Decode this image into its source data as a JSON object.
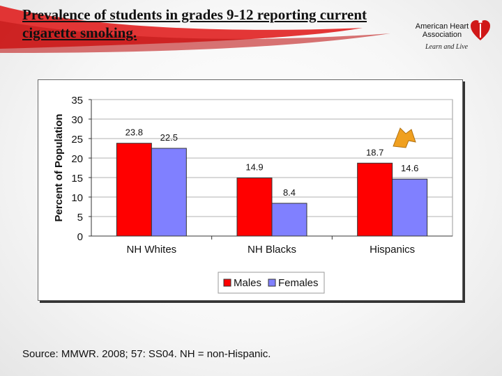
{
  "slide": {
    "title": "Prevalence of students in grades 9-12 reporting current cigarette smoking.",
    "source": "Source: MMWR. 2008; 57: SS04. NH = non-Hispanic."
  },
  "logo": {
    "line1": "American Heart",
    "line2": "Association",
    "tagline": "Learn and Live"
  },
  "colors": {
    "males": "#ff0000",
    "females": "#8080ff",
    "accent": "#f0a020"
  },
  "chart_data": {
    "type": "bar",
    "categories": [
      "NH Whites",
      "NH Blacks",
      "Hispanics"
    ],
    "series": [
      {
        "name": "Males",
        "values": [
          23.8,
          14.9,
          18.7
        ]
      },
      {
        "name": "Females",
        "values": [
          22.5,
          8.4,
          14.6
        ]
      }
    ],
    "ylabel": "Percent of Population",
    "ylim": [
      0,
      35
    ],
    "yticks": [
      0,
      5,
      10,
      15,
      20,
      25,
      30,
      35
    ],
    "grid": true,
    "legend": "bottom"
  }
}
